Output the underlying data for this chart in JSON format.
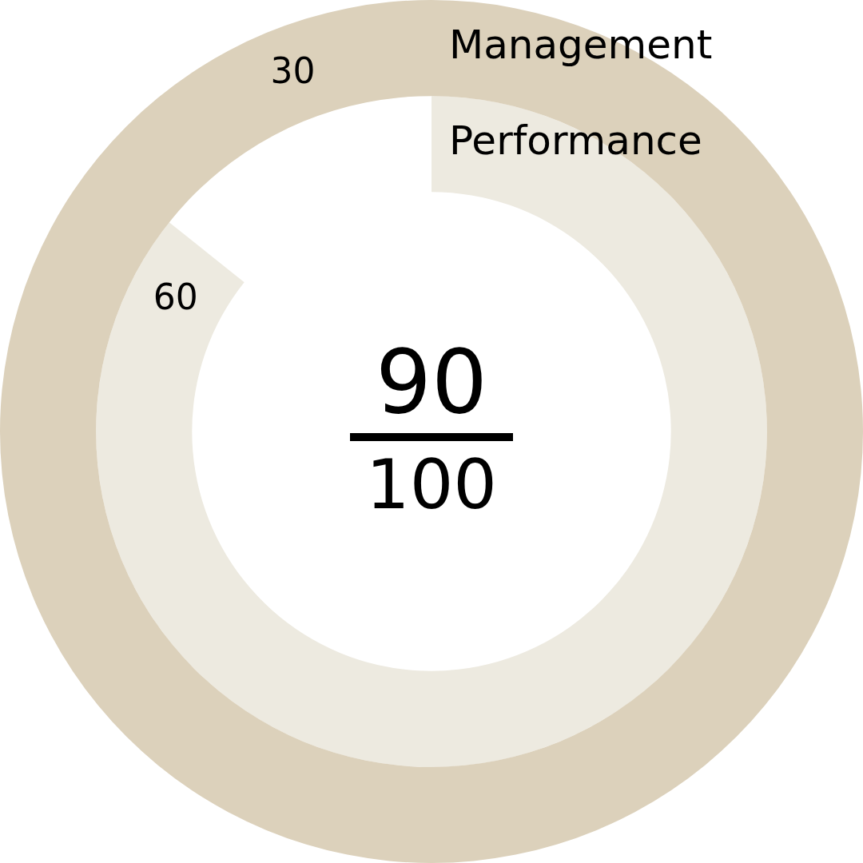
{
  "chart_data": {
    "type": "other",
    "categories": [
      "Management",
      "Performance"
    ],
    "values": [
      30,
      60
    ],
    "colors": [
      "#dcd1bb",
      "#edeae0"
    ],
    "data_labels": true,
    "annotations": [
      "90",
      "100"
    ]
  }
}
